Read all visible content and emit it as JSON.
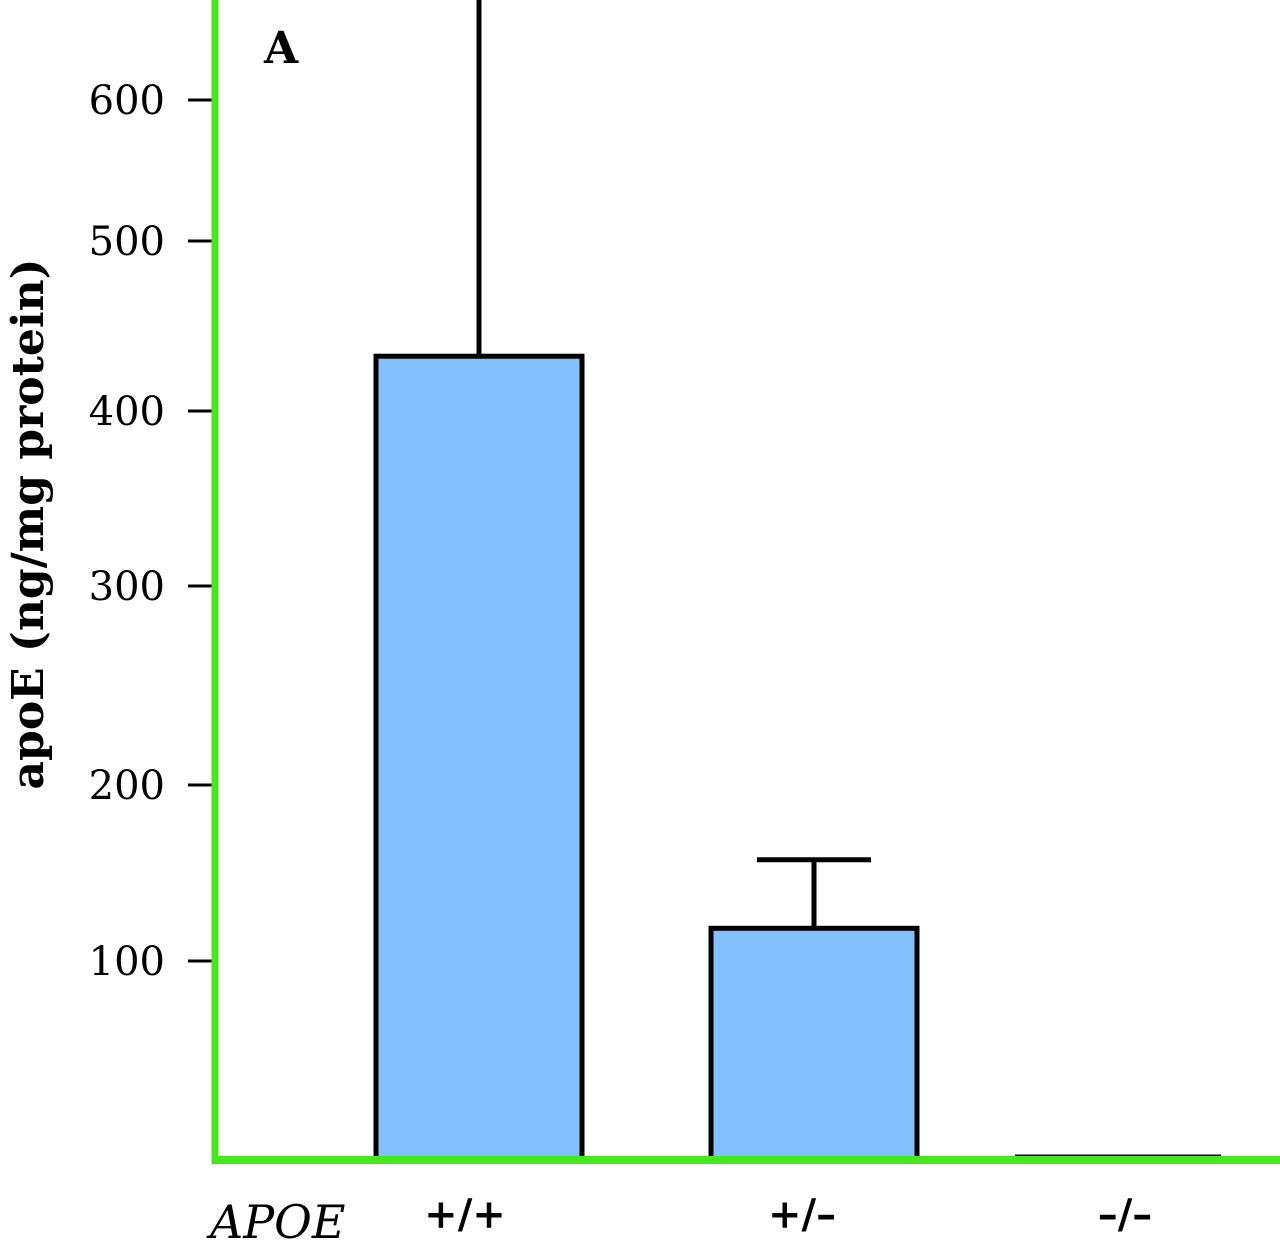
{
  "chart_data": {
    "type": "bar",
    "panel_label": "A",
    "xlabel": "APOE",
    "ylabel": "apoE (ng/mg protein)",
    "categories": [
      "+/+",
      "+/–",
      "–/–"
    ],
    "values": [
      435,
      118,
      0
    ],
    "errors": [
      254,
      44,
      0
    ],
    "yticks": [
      100,
      200,
      300,
      400,
      500,
      600
    ],
    "ytick_positions": [
      97,
      210,
      311,
      406,
      496,
      577
    ],
    "ylim": [
      0,
      620
    ],
    "bar_color": "#82c0fc",
    "axis_color": "#44e81c",
    "grid": false
  }
}
